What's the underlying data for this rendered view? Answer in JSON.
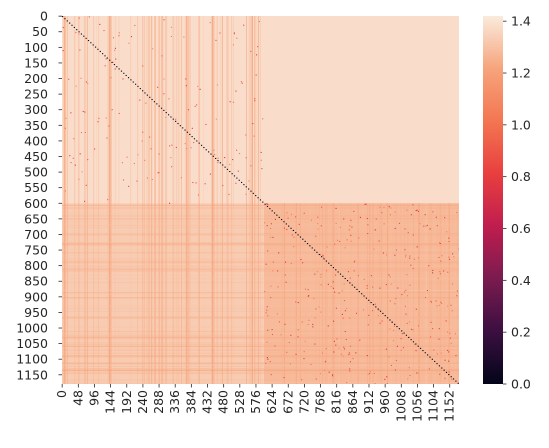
{
  "chart_data": {
    "type": "heatmap",
    "title": "",
    "xlabel": "",
    "ylabel": "",
    "matrix_size": 1180,
    "x_tick_labels": [
      0,
      48,
      96,
      144,
      192,
      240,
      288,
      336,
      384,
      432,
      480,
      528,
      576,
      624,
      672,
      720,
      768,
      816,
      864,
      912,
      960,
      1008,
      1056,
      1104,
      1152
    ],
    "y_tick_labels": [
      0,
      50,
      100,
      150,
      200,
      250,
      300,
      350,
      400,
      450,
      500,
      550,
      600,
      650,
      700,
      750,
      800,
      850,
      900,
      950,
      1000,
      1050,
      1100,
      1150
    ],
    "colorbar": {
      "vmin": 0.0,
      "vmax": 1.42,
      "ticks": [
        0.0,
        0.2,
        0.4,
        0.6,
        0.8,
        1.0,
        1.2,
        1.4
      ],
      "tick_labels": [
        "0.0",
        "0.2",
        "0.4",
        "0.6",
        "0.8",
        "1.0",
        "1.2",
        "1.4"
      ],
      "colormap": "rocket",
      "colors": [
        "#03051A",
        "#3B0F40",
        "#7A1B4F",
        "#C01D4F",
        "#E83F3F",
        "#F37651",
        "#F6A47C",
        "#FAEBDD"
      ]
    },
    "blocks": [
      {
        "rows": [
          0,
          600
        ],
        "cols": [
          0,
          1180
        ],
        "typical_value": 1.38
      },
      {
        "rows": [
          600,
          1180
        ],
        "cols": [
          0,
          600
        ],
        "typical_value": 1.33
      },
      {
        "rows": [
          600,
          1180
        ],
        "cols": [
          600,
          1180
        ],
        "typical_value": 1.28
      }
    ],
    "diagonal_value": 0.0,
    "grid": false
  }
}
